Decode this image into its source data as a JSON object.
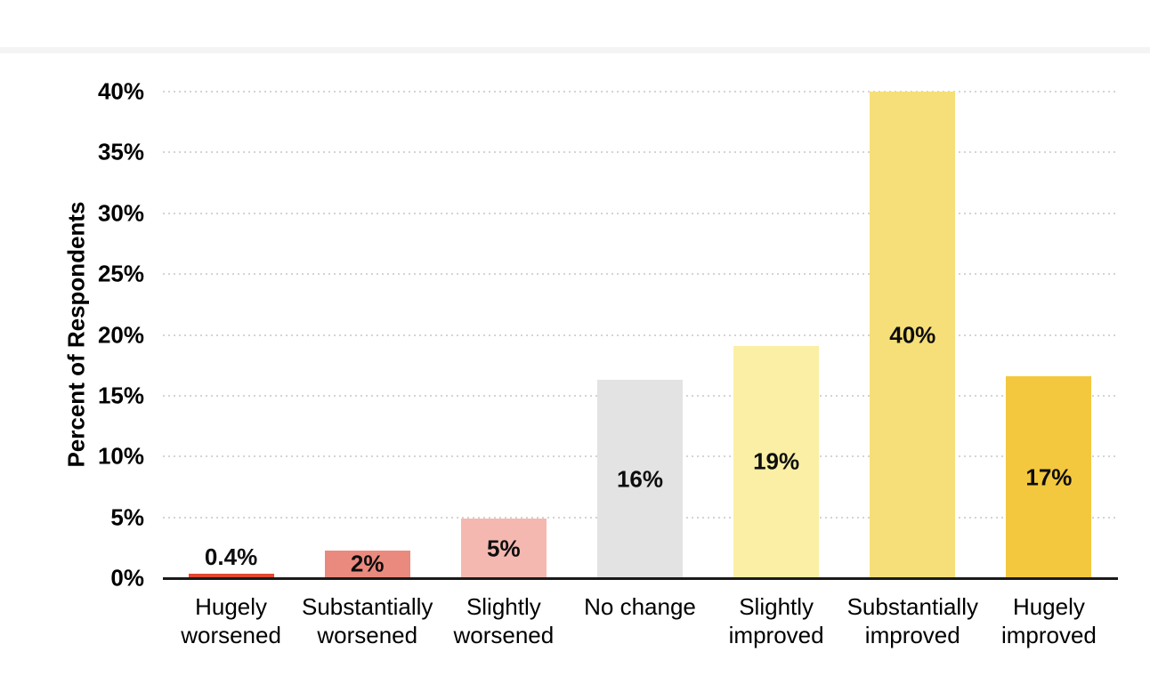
{
  "chart_data": {
    "type": "bar",
    "ylabel": "Percent of Respondents",
    "categories": [
      "Hugely worsened",
      "Substantially worsened",
      "Slightly worsened",
      "No change",
      "Slightly improved",
      "Substantially improved",
      "Hugely improved"
    ],
    "category_lines": [
      [
        "Hugely",
        "worsened"
      ],
      [
        "Substantially",
        "worsened"
      ],
      [
        "Slightly",
        "worsened"
      ],
      [
        "No change"
      ],
      [
        "Slightly",
        "improved"
      ],
      [
        "Substantially",
        "improved"
      ],
      [
        "Hugely",
        "improved"
      ]
    ],
    "values": [
      0.4,
      2,
      5,
      16,
      19,
      40,
      17
    ],
    "bar_heights_pct": [
      0.4,
      2.3,
      4.9,
      16.3,
      19.1,
      40,
      16.6
    ],
    "data_labels": [
      "0.4%",
      "2%",
      "5%",
      "16%",
      "19%",
      "40%",
      "17%"
    ],
    "data_label_placement": [
      "above",
      "inside",
      "inside",
      "inside",
      "inside",
      "inside",
      "inside"
    ],
    "bar_colors": [
      "#e04933",
      "#ea8a7e",
      "#f4b8b1",
      "#e3e3e3",
      "#faefa5",
      "#f6df79",
      "#f3c83e"
    ],
    "y_ticks": [
      "0%",
      "5%",
      "10%",
      "15%",
      "20%",
      "25%",
      "30%",
      "35%",
      "40%"
    ],
    "y_tick_values": [
      0,
      5,
      10,
      15,
      20,
      25,
      30,
      35,
      40
    ],
    "ylim": [
      0,
      40
    ],
    "grid": "horizontal dotted lines every 5%",
    "gridline_color": "#d4d4d4",
    "axis_line_color": "#1a1a1a",
    "legend": "none"
  }
}
